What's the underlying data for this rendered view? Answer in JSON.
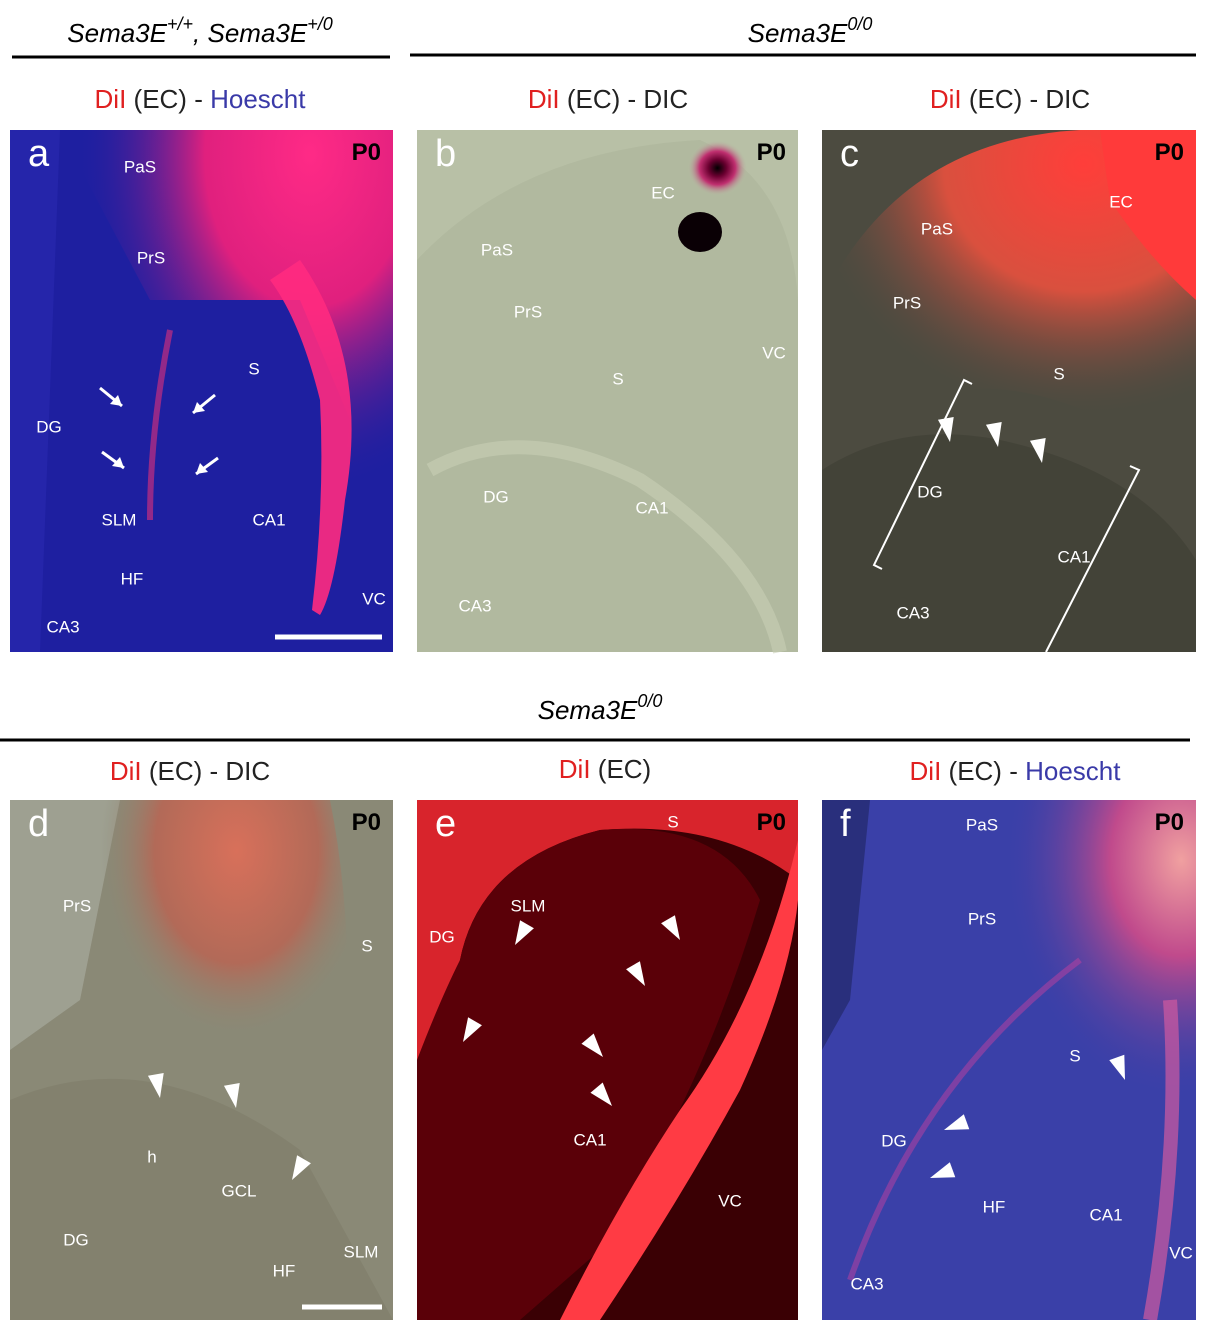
{
  "headers": [
    {
      "parts": [
        "Sema3E",
        "+/+",
        ", Sema3E",
        "+/0"
      ]
    },
    {
      "parts": [
        "Sema3E",
        "0/0"
      ]
    },
    {
      "parts": [
        "Sema3E",
        "0/0"
      ]
    }
  ],
  "panels": [
    {
      "letter": "a",
      "stage": "P0",
      "title": [
        "DiI",
        "(EC) -",
        "Hoescht"
      ],
      "labels": [
        "PaS",
        "PrS",
        "S",
        "DG",
        "SLM",
        "CA1",
        "HF",
        "CA3",
        "VC"
      ]
    },
    {
      "letter": "b",
      "stage": "P0",
      "title": [
        "DiI",
        "(EC) - DIC"
      ],
      "labels": [
        "EC",
        "PaS",
        "PrS",
        "VC",
        "S",
        "DG",
        "CA1",
        "CA3"
      ]
    },
    {
      "letter": "c",
      "stage": "P0",
      "title": [
        "DiI",
        "(EC) - DIC"
      ],
      "labels": [
        "EC",
        "PaS",
        "PrS",
        "S",
        "DG",
        "CA1",
        "CA3"
      ]
    },
    {
      "letter": "d",
      "stage": "P0",
      "title": [
        "DiI",
        "(EC) - DIC"
      ],
      "labels": [
        "PrS",
        "S",
        "h",
        "GCL",
        "DG",
        "SLM",
        "HF"
      ]
    },
    {
      "letter": "e",
      "stage": "P0",
      "title": [
        "DiI",
        "(EC)"
      ],
      "labels": [
        "S",
        "SLM",
        "DG",
        "CA1",
        "VC"
      ]
    },
    {
      "letter": "f",
      "stage": "P0",
      "title": [
        "DiI",
        "(EC) -",
        "Hoescht"
      ],
      "labels": [
        "PaS",
        "PrS",
        "S",
        "DG",
        "HF",
        "CA1",
        "VC",
        "CA3"
      ]
    }
  ]
}
